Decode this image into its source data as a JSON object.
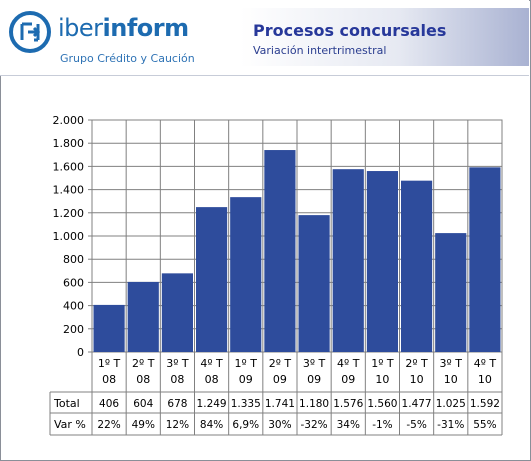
{
  "header": {
    "logo_text_light": "iber",
    "logo_text_bold": "inform",
    "logo_subtitle": "Grupo Crédito y Caución",
    "title": "Procesos concursales",
    "subtitle": "Variación intertrimestral"
  },
  "chart_data": {
    "type": "bar",
    "categories": [
      [
        "1º T",
        "08"
      ],
      [
        "2º T",
        "08"
      ],
      [
        "3º T",
        "08"
      ],
      [
        "4º T",
        "08"
      ],
      [
        "1º T",
        "09"
      ],
      [
        "2º T",
        "09"
      ],
      [
        "3º T",
        "09"
      ],
      [
        "4º T",
        "09"
      ],
      [
        "1º T",
        "10"
      ],
      [
        "2º T",
        "10"
      ],
      [
        "3º T",
        "10"
      ],
      [
        "4º T",
        "10"
      ]
    ],
    "series": [
      {
        "values": [
          406,
          604,
          678,
          1249,
          1335,
          1741,
          1180,
          1576,
          1560,
          1477,
          1025,
          1592
        ]
      }
    ],
    "ylim": [
      0,
      2000
    ],
    "yticks": [
      0,
      200,
      400,
      600,
      800,
      1000,
      1200,
      1400,
      1600,
      1800,
      2000
    ],
    "ytick_labels": [
      "0",
      "200",
      "400",
      "600",
      "800",
      "1.000",
      "1.200",
      "1.400",
      "1.600",
      "1.800",
      "2.000"
    ],
    "grid": true,
    "bar_color": "#2e4c9c",
    "table": {
      "rows": [
        {
          "label": "Total",
          "values": [
            "406",
            "604",
            "678",
            "1.249",
            "1.335",
            "1.741",
            "1.180",
            "1.576",
            "1.560",
            "1.477",
            "1.025",
            "1.592"
          ]
        },
        {
          "label": "Var  %",
          "values": [
            "22%",
            "49%",
            "12%",
            "84%",
            "6,9%",
            "30%",
            "-32%",
            "34%",
            "-1%",
            "-5%",
            "-31%",
            "55%"
          ]
        }
      ]
    }
  }
}
